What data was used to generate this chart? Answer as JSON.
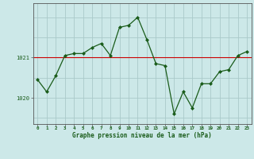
{
  "x": [
    0,
    1,
    2,
    3,
    4,
    5,
    6,
    7,
    8,
    9,
    10,
    11,
    12,
    13,
    14,
    15,
    16,
    17,
    18,
    19,
    20,
    21,
    22,
    23
  ],
  "y": [
    1020.45,
    1020.15,
    1020.55,
    1021.05,
    1021.1,
    1021.1,
    1021.25,
    1021.35,
    1021.05,
    1021.75,
    1021.8,
    1022.0,
    1021.45,
    1020.85,
    1020.8,
    1019.6,
    1020.15,
    1019.75,
    1020.35,
    1020.35,
    1020.65,
    1020.7,
    1021.05,
    1021.15
  ],
  "line_color": "#1a5c1a",
  "marker_color": "#1a5c1a",
  "bg_color": "#cce8e8",
  "grid_color": "#aacaca",
  "border_color": "#555555",
  "xlabel": "Graphe pression niveau de la mer (hPa)",
  "xlabel_color": "#1a5c1a",
  "tick_color": "#1a5c1a",
  "ytick_labels": [
    "1020",
    "1021"
  ],
  "ytick_values": [
    1020.0,
    1021.0
  ],
  "ylim": [
    1019.35,
    1022.35
  ],
  "xlim": [
    -0.5,
    23.5
  ],
  "figsize": [
    3.2,
    2.0
  ],
  "dpi": 100,
  "red_hline": 1021.0,
  "red_hline_color": "#cc0000",
  "bottom_bar_color": "#2a4a2a"
}
